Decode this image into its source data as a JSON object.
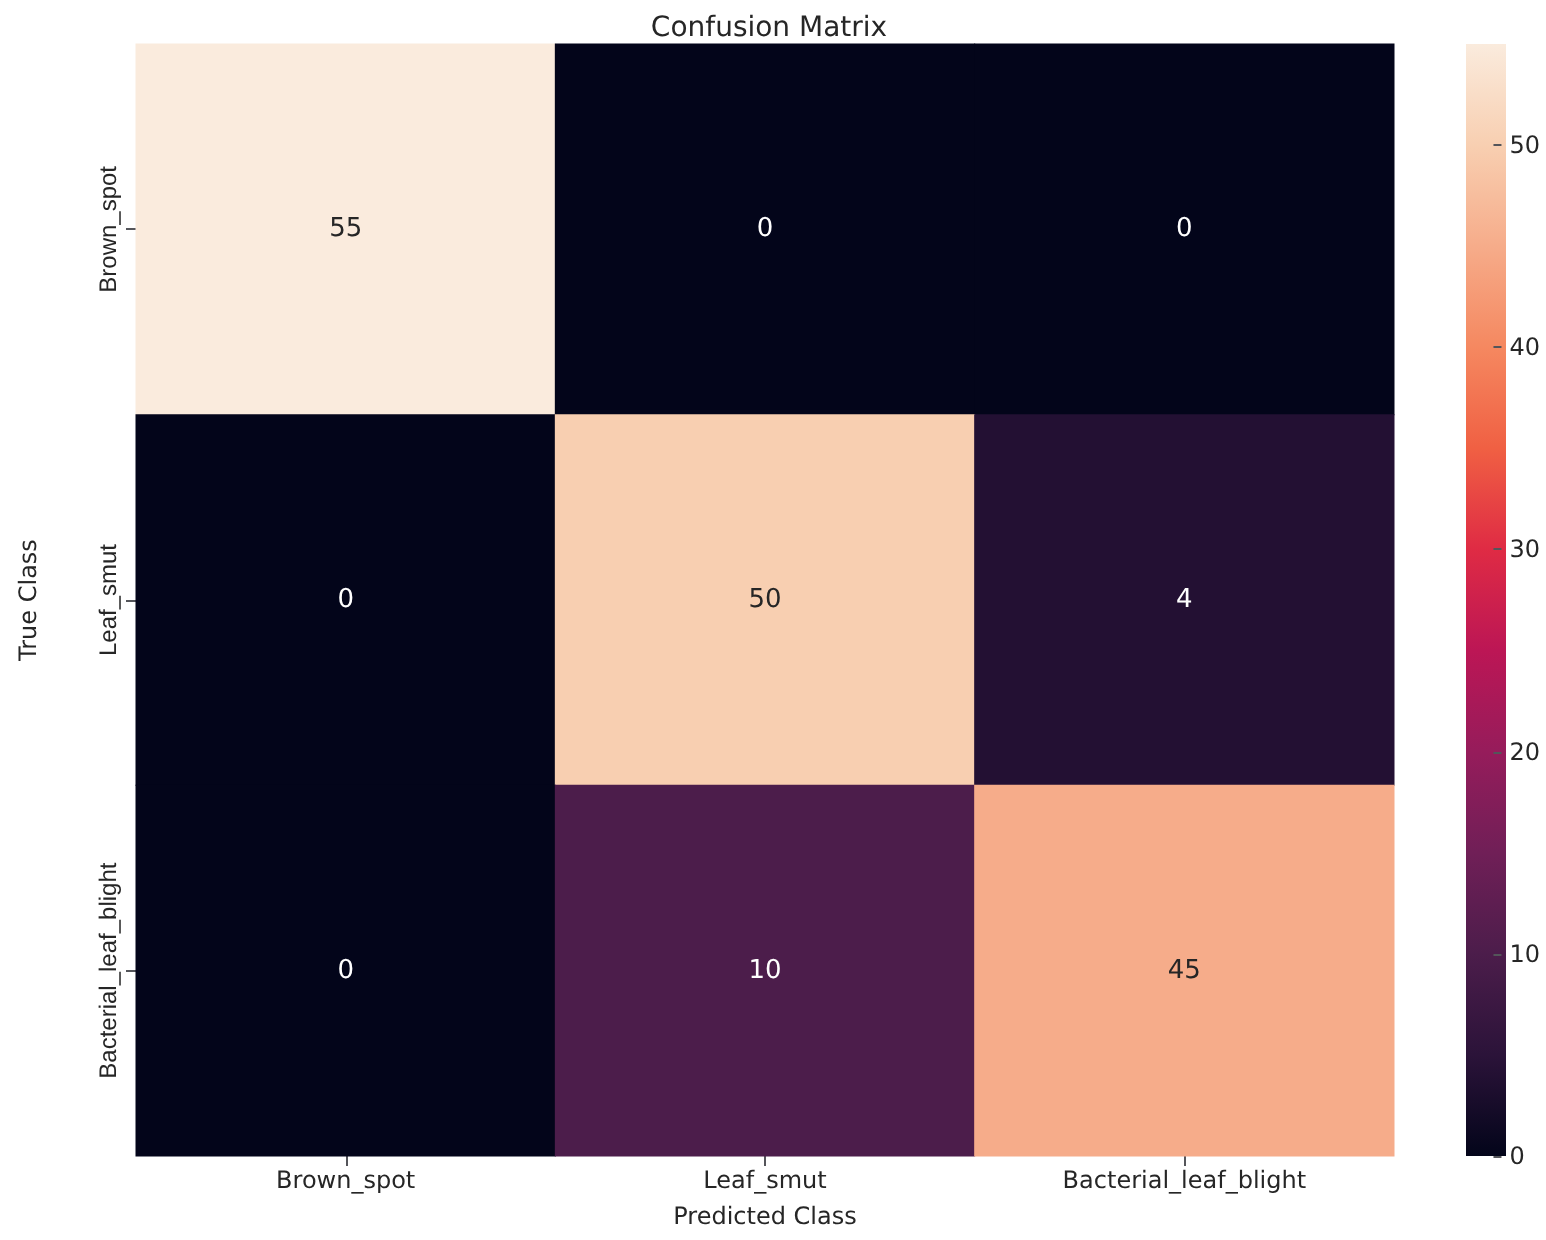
{
  "chart_data": {
    "type": "heatmap",
    "title": "Confusion Matrix",
    "xlabel": "Predicted Class",
    "ylabel": "True Class",
    "categories": [
      "Brown_spot",
      "Leaf_smut",
      "Bacterial_leaf_blight"
    ],
    "y_categories": [
      "Brown_spot",
      "Leaf_smut",
      "Bacterial_leaf_blight"
    ],
    "cells": [
      [
        55,
        0,
        0
      ],
      [
        0,
        50,
        4
      ],
      [
        0,
        10,
        45
      ]
    ],
    "data_labels": true,
    "clim": [
      0,
      55
    ],
    "cticks": [
      0,
      10,
      20,
      30,
      40,
      50
    ]
  }
}
